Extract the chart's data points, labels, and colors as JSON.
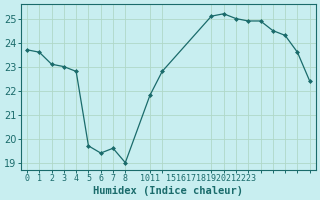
{
  "x": [
    0,
    1,
    2,
    3,
    4,
    5,
    6,
    7,
    8,
    10,
    11,
    15,
    16,
    17,
    18,
    19,
    20,
    21,
    22,
    23
  ],
  "y": [
    23.7,
    23.6,
    23.1,
    23.0,
    22.8,
    19.7,
    19.4,
    19.6,
    19.0,
    21.8,
    22.8,
    25.1,
    25.2,
    25.0,
    24.9,
    24.9,
    24.5,
    24.3,
    23.6,
    22.4
  ],
  "xlabel": "Humidex (Indice chaleur)",
  "xlim": [
    -0.5,
    23.5
  ],
  "ylim": [
    18.7,
    25.6
  ],
  "yticks": [
    19,
    20,
    21,
    22,
    23,
    24,
    25
  ],
  "xtick_positions": [
    0,
    1,
    2,
    3,
    4,
    5,
    6,
    7,
    8,
    10,
    11,
    15,
    16,
    17,
    18,
    19,
    20,
    21,
    22,
    23
  ],
  "xtick_labels": [
    "0",
    "1",
    "2",
    "3",
    "4",
    "5",
    "6",
    "7",
    "8",
    "1011",
    "",
    "151617181920212223",
    "",
    "",
    "",
    "",
    "",
    "",
    "",
    ""
  ],
  "line_color": "#1a6b6b",
  "marker_color": "#1a6b6b",
  "bg_color": "#c8eef0",
  "grid_color": "#b0d8c8",
  "axis_color": "#1a6b6b",
  "tick_color": "#1a6b6b",
  "label_color": "#1a6b6b",
  "xlabel_fontsize": 7.5,
  "ytick_fontsize": 7,
  "xtick_fontsize": 6
}
